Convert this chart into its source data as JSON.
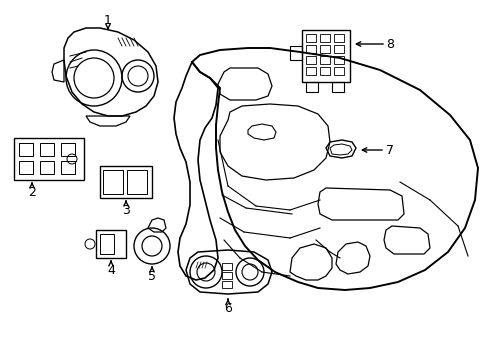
{
  "background_color": "#ffffff",
  "line_color": "#000000",
  "lw": 1.0,
  "figsize": [
    4.89,
    3.6
  ],
  "dpi": 100,
  "xlim": [
    0,
    489
  ],
  "ylim": [
    0,
    360
  ]
}
